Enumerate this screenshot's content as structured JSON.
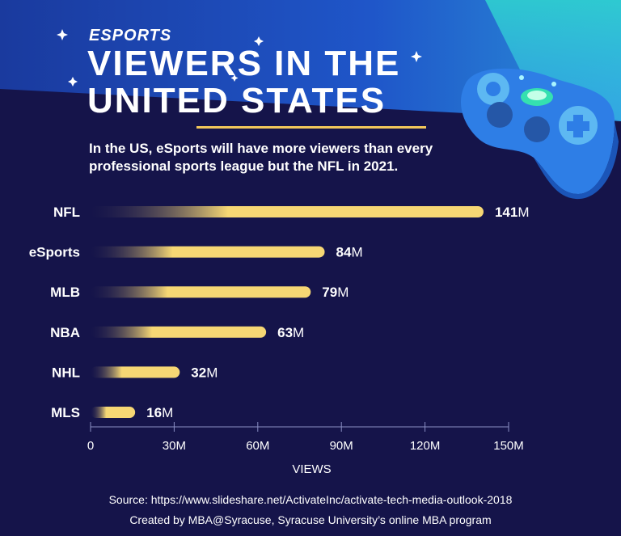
{
  "header": {
    "kicker": "ESPORTS",
    "title_line1": "VIEWERS IN THE",
    "title_line2": "UNITED STATES",
    "lede": "In the US, eSports will have more viewers than every professional sports league but the NFL in 2021."
  },
  "chart_data": {
    "type": "bar",
    "orientation": "horizontal",
    "categories": [
      "NFL",
      "eSports",
      "MLB",
      "NBA",
      "NHL",
      "MLS"
    ],
    "values": [
      141,
      84,
      79,
      63,
      32,
      16
    ],
    "value_labels": [
      {
        "num": "141",
        "unit": "M"
      },
      {
        "num": "84",
        "unit": "M"
      },
      {
        "num": "79",
        "unit": "M"
      },
      {
        "num": "63",
        "unit": "M"
      },
      {
        "num": "32",
        "unit": "M"
      },
      {
        "num": "16",
        "unit": "M"
      }
    ],
    "xticks": [
      0,
      30,
      60,
      90,
      120,
      150
    ],
    "xtick_labels": [
      "0",
      "30M",
      "60M",
      "90M",
      "120M",
      "150M"
    ],
    "xlim": [
      0,
      150
    ],
    "xlabel": "VIEWS",
    "grid": false,
    "bar_color": "#f6d774",
    "bar_fade_color": "#15144a"
  },
  "footer": {
    "source": "Source: https://www.slideshare.net/ActivateInc/activate-tech-media-outlook-2018",
    "credit": "Created by MBA@Syracuse, Syracuse University’s online MBA program"
  },
  "colors": {
    "background": "#15144a",
    "header_band": "#1f4fc4",
    "accent": "#f2c75a",
    "text": "#ffffff"
  },
  "icons": [
    "sparkle-icon",
    "game-controller-icon"
  ]
}
